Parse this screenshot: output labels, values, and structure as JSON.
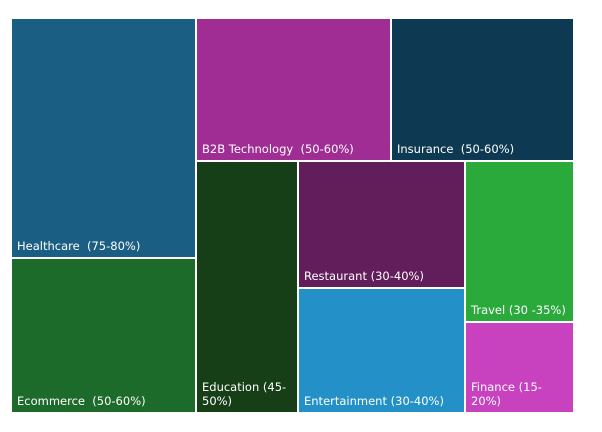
{
  "chart_data": {
    "type": "treemap",
    "title": "",
    "items": [
      {
        "label": "Healthcare  (75-80%)",
        "color": "#1a5e84"
      },
      {
        "label": "Ecommerce  (50-60%)",
        "color": "#1d6b2a"
      },
      {
        "label": "B2B Technology  (50-60%)",
        "color": "#a02d93"
      },
      {
        "label": "Insurance  (50-60%)",
        "color": "#0d3a52"
      },
      {
        "label": "Education (45-\n50%)",
        "color": "#163f17"
      },
      {
        "label": "Restaurant (30-40%)",
        "color": "#621d5b"
      },
      {
        "label": "Entertainment (30-40%)",
        "color": "#2391c7"
      },
      {
        "label": "Travel (30 -35%)",
        "color": "#29aa3b"
      },
      {
        "label": "Finance (15-20%)",
        "color": "#c841be"
      }
    ]
  }
}
